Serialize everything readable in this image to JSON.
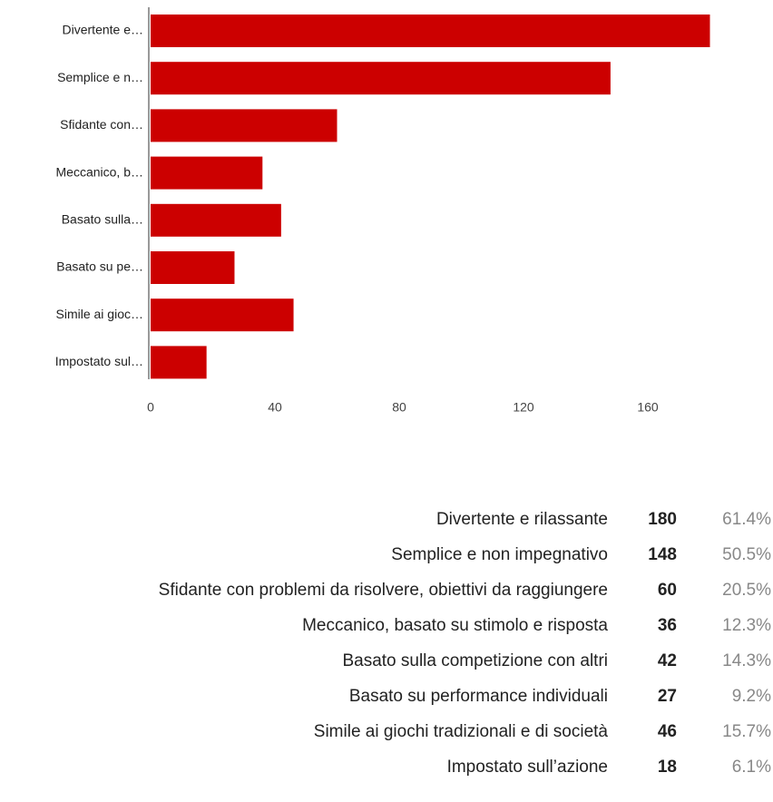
{
  "chart_data": {
    "type": "bar",
    "orientation": "horizontal",
    "categories": [
      "Divertente e…",
      "Semplice e n…",
      "Sfidante con…",
      "Meccanico, b…",
      "Basato sulla…",
      "Basato su pe…",
      "Simile ai gioc…",
      "Impostato sul…"
    ],
    "values": [
      180,
      148,
      60,
      36,
      42,
      27,
      46,
      18
    ],
    "color": "#cc0000",
    "xlim": [
      0,
      180
    ],
    "xticks": [
      0,
      40,
      80,
      120,
      160
    ],
    "grid": false
  },
  "table": {
    "rows": [
      [
        "Divertente e rilassante",
        "180",
        "61.4%"
      ],
      [
        "Semplice e non impegnativo",
        "148",
        "50.5%"
      ],
      [
        "Sfidante con problemi da risolvere, obiettivi da raggiungere",
        "60",
        "20.5%"
      ],
      [
        "Meccanico, basato su stimolo e risposta",
        "36",
        "12.3%"
      ],
      [
        "Basato sulla competizione con altri",
        "42",
        "14.3%"
      ],
      [
        "Basato su performance individuali",
        "27",
        "9.2%"
      ],
      [
        "Simile ai giochi tradizionali e di società",
        "46",
        "15.7%"
      ],
      [
        "Impostato sull’azione",
        "18",
        "6.1%"
      ]
    ]
  }
}
